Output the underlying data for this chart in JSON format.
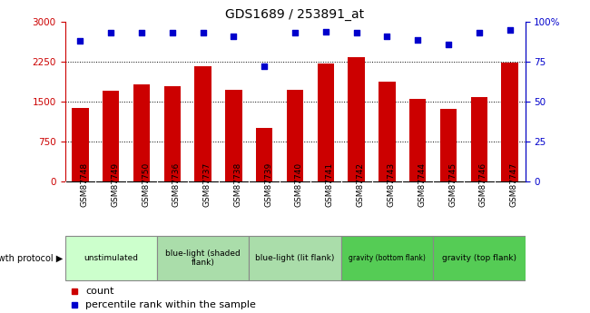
{
  "title": "GDS1689 / 253891_at",
  "samples": [
    "GSM87748",
    "GSM87749",
    "GSM87750",
    "GSM87736",
    "GSM87737",
    "GSM87738",
    "GSM87739",
    "GSM87740",
    "GSM87741",
    "GSM87742",
    "GSM87743",
    "GSM87744",
    "GSM87745",
    "GSM87746",
    "GSM87747"
  ],
  "bar_values": [
    1390,
    1700,
    1820,
    1800,
    2170,
    1730,
    1010,
    1720,
    2210,
    2340,
    1870,
    1560,
    1370,
    1580,
    2230
  ],
  "dot_values": [
    88,
    93,
    93,
    93,
    93,
    91,
    72,
    93,
    94,
    93,
    91,
    89,
    86,
    93,
    95
  ],
  "bar_color": "#cc0000",
  "dot_color": "#0000cc",
  "ylim_left": [
    0,
    3000
  ],
  "ylim_right": [
    0,
    100
  ],
  "yticks_left": [
    0,
    750,
    1500,
    2250,
    3000
  ],
  "yticks_right": [
    0,
    25,
    50,
    75,
    100
  ],
  "ytick_labels_left": [
    "0",
    "750",
    "1500",
    "2250",
    "3000"
  ],
  "ytick_labels_right": [
    "0",
    "25",
    "50",
    "75",
    "100%"
  ],
  "groups": [
    {
      "label": "unstimulated",
      "start": 0,
      "end": 3,
      "color": "#ccffcc"
    },
    {
      "label": "blue-light (shaded\nflank)",
      "start": 3,
      "end": 6,
      "color": "#aaddaa"
    },
    {
      "label": "blue-light (lit flank)",
      "start": 6,
      "end": 9,
      "color": "#aaddaa"
    },
    {
      "label": "gravity (bottom flank)",
      "start": 9,
      "end": 12,
      "color": "#55cc55"
    },
    {
      "label": "gravity (top flank)",
      "start": 12,
      "end": 15,
      "color": "#55cc55"
    }
  ],
  "growth_protocol_label": "growth protocol",
  "legend_items": [
    {
      "color": "#cc0000",
      "label": "count"
    },
    {
      "color": "#0000cc",
      "label": "percentile rank within the sample"
    }
  ],
  "xlabel_bg": "#d0d0d0",
  "fig_bg": "#ffffff"
}
